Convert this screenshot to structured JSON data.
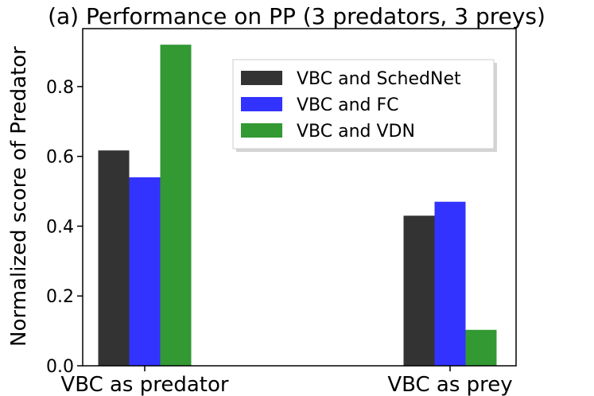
{
  "chart_data": {
    "type": "bar",
    "title": "(a) Performance on PP (3 predators, 3 preys)",
    "xlabel": "",
    "ylabel": "Normalized score of Predator",
    "categories": [
      "VBC as predator",
      "VBC as prey"
    ],
    "series": [
      {
        "name": "VBC and SchedNet",
        "color": "#333333",
        "values": [
          0.617,
          0.43
        ]
      },
      {
        "name": "VBC and FC",
        "color": "#3333ff",
        "values": [
          0.54,
          0.47
        ]
      },
      {
        "name": "VBC and VDN",
        "color": "#339933",
        "values": [
          0.92,
          0.103
        ]
      }
    ],
    "yticks": [
      "0.0",
      "0.2",
      "0.4",
      "0.6",
      "0.8"
    ],
    "ylim": [
      0,
      0.966
    ],
    "grid": false,
    "legend": "top-right"
  }
}
